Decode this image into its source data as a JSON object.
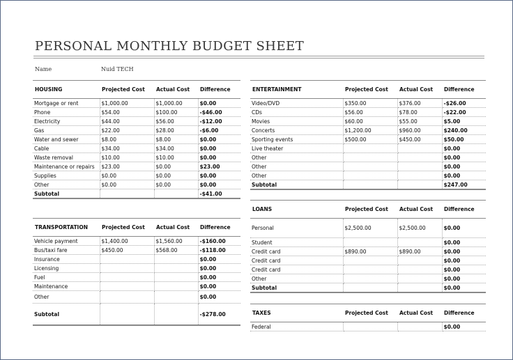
{
  "header": {
    "title": "PERSONAL MONTHLY BUDGET SHEET",
    "name_label": "Name",
    "name_value": "Nuid TECH"
  },
  "tables": [
    {
      "title": "HOUSING",
      "columns": [
        "Projected Cost",
        "Actual Cost",
        "Difference"
      ],
      "rows": [
        [
          "Mortgage or rent",
          "$1,000.00",
          "$1,000.00",
          "$0.00"
        ],
        [
          "Phone",
          "$54.00",
          "$100.00",
          "-$46.00"
        ],
        [
          "Electricity",
          "$44.00",
          "$56.00",
          "-$12.00"
        ],
        [
          "Gas",
          "$22.00",
          "$28.00",
          "-$6.00"
        ],
        [
          "Water and sewer",
          "$8.00",
          "$8.00",
          "$0.00"
        ],
        [
          "Cable",
          "$34.00",
          "$34.00",
          "$0.00"
        ],
        [
          "Waste removal",
          "$10.00",
          "$10.00",
          "$0.00"
        ],
        [
          "Maintenance or repairs",
          "$23.00",
          "$0.00",
          "$23.00"
        ],
        [
          "Supplies",
          "$0.00",
          "$0.00",
          "$0.00"
        ],
        [
          "Other",
          "$0.00",
          "$0.00",
          "$0.00"
        ],
        [
          "Subtotal",
          null,
          null,
          "-$41.00"
        ]
      ]
    },
    {
      "title": "TRANSPORTATION",
      "columns": [
        "Projected Cost",
        "Actual Cost",
        "Difference"
      ],
      "rows": [
        [
          "Vehicle payment",
          "$1,400.00",
          "$1,560.00",
          "-$160.00"
        ],
        [
          "Bus/taxi fare",
          "$450.00",
          "$568.00",
          "-$118.00"
        ],
        [
          "Insurance",
          null,
          null,
          "$0.00"
        ],
        [
          "Licensing",
          null,
          null,
          "$0.00"
        ],
        [
          "Fuel",
          null,
          null,
          "$0.00"
        ],
        [
          "Maintenance",
          null,
          null,
          "$0.00"
        ],
        [
          "Other",
          null,
          null,
          "$0.00"
        ],
        [
          "Subtotal",
          null,
          null,
          "-$278.00"
        ]
      ]
    },
    {
      "title": "ENTERTAINMENT",
      "columns": [
        "Projected Cost",
        "Actual Cost",
        "Difference"
      ],
      "rows": [
        [
          "Video/DVD",
          "$350.00",
          "$376.00",
          "-$26.00"
        ],
        [
          "CDs",
          "$56.00",
          "$78.00",
          "-$22.00"
        ],
        [
          "Movies",
          "$60.00",
          "$55.00",
          "$5.00"
        ],
        [
          "Concerts",
          "$1,200.00",
          "$960.00",
          "$240.00"
        ],
        [
          "Sporting events",
          "$500.00",
          "$450.00",
          "$50.00"
        ],
        [
          "Live theater",
          null,
          null,
          "$0.00"
        ],
        [
          "Other",
          null,
          null,
          "$0.00"
        ],
        [
          "Other",
          null,
          null,
          "$0.00"
        ],
        [
          "Other",
          null,
          null,
          "$0.00"
        ],
        [
          "Subtotal",
          null,
          null,
          "$247.00"
        ]
      ]
    },
    {
      "title": "LOANS",
      "columns": [
        "Projected Cost",
        "Actual Cost",
        "Difference"
      ],
      "rows": [
        [
          "Personal",
          "$2,500.00",
          "$2,500.00",
          "$0.00"
        ],
        [
          "Student",
          null,
          null,
          "$0.00"
        ],
        [
          "Credit card",
          "$890.00",
          "$890.00",
          "$0.00"
        ],
        [
          "Credit card",
          null,
          null,
          "$0.00"
        ],
        [
          "Credit card",
          null,
          null,
          "$0.00"
        ],
        [
          "Other",
          null,
          null,
          "$0.00"
        ],
        [
          "Subtotal",
          null,
          null,
          "$0.00"
        ]
      ]
    },
    {
      "title": "TAXES",
      "columns": [
        "Projected Cost",
        "Actual Cost",
        "Difference"
      ],
      "rows": [
        [
          "Federal",
          null,
          null,
          "$0.00"
        ]
      ]
    }
  ]
}
